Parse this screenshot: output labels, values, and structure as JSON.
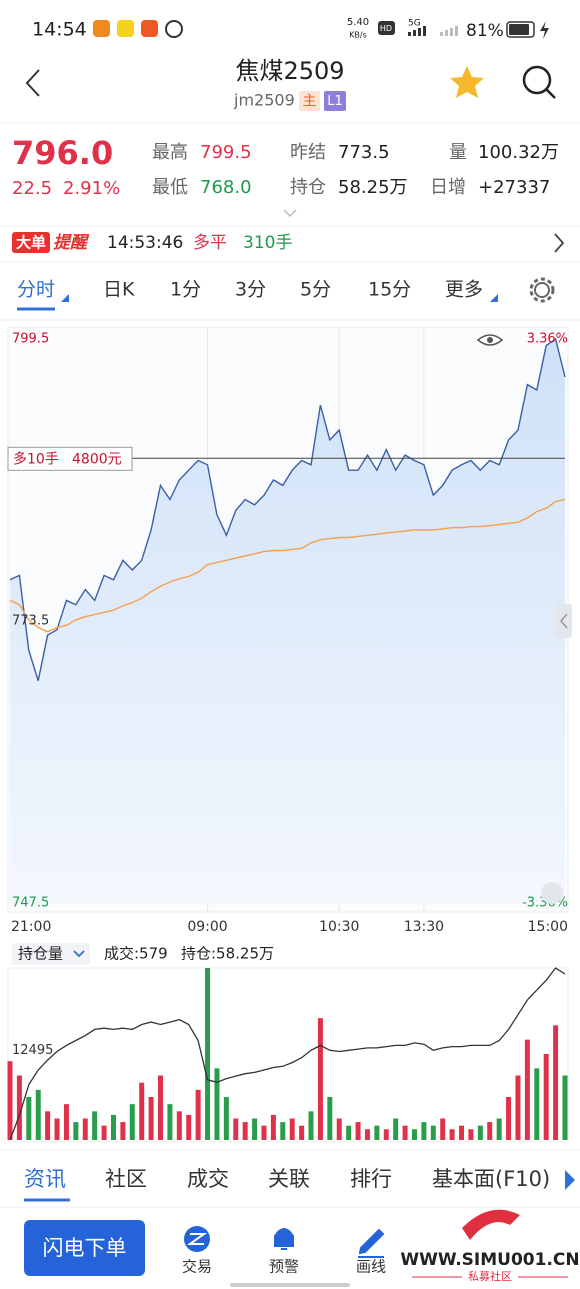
{
  "status_bar": {
    "time": "14:54",
    "net_speed": "5.40",
    "net_unit": "KB/s",
    "hd": "HD",
    "signal": "5G",
    "battery": "81%"
  },
  "header": {
    "title": "焦煤2509",
    "code": "jm2509",
    "badge_main": "主",
    "badge_level": "L1"
  },
  "quote": {
    "last": "796.0",
    "change": "22.5",
    "change_pct": "2.91%",
    "high_label": "最高",
    "high": "799.5",
    "low_label": "最低",
    "low": "768.0",
    "prev_settle_label": "昨结",
    "prev_settle": "773.5",
    "open_interest_label": "持仓",
    "open_interest": "58.25万",
    "volume_label": "量",
    "volume": "100.32万",
    "daily_change_label": "日增",
    "daily_change": "+27337"
  },
  "alert": {
    "badge": "大单",
    "badge_suffix": "提醒",
    "time": "14:53:46",
    "action": "多平",
    "size": "310手"
  },
  "period_tabs": [
    "分时",
    "日K",
    "1分",
    "3分",
    "5分",
    "15分",
    "更多"
  ],
  "chart_data": [
    {
      "type": "line",
      "categories": [
        "21:00",
        null,
        null,
        null,
        null,
        null,
        null,
        null,
        null,
        null,
        null,
        null,
        null,
        null,
        null,
        null,
        null,
        null,
        null,
        null,
        null,
        "09:00",
        null,
        null,
        null,
        null,
        null,
        null,
        null,
        null,
        null,
        null,
        null,
        null,
        null,
        "10:30",
        null,
        null,
        null,
        null,
        null,
        null,
        null,
        null,
        "13:30",
        null,
        null,
        null,
        null,
        null,
        null,
        null,
        null,
        null,
        null,
        null,
        null,
        null,
        null,
        "15:00"
      ],
      "series": [
        {
          "color": "#3a5fa8",
          "fill": true,
          "values": [
            777.3,
            777.7,
            770.8,
            768.0,
            772.2,
            772.7,
            775.4,
            775.0,
            776.4,
            775.4,
            777.7,
            777.3,
            779.1,
            778.2,
            779.1,
            781.9,
            786.0,
            784.7,
            786.5,
            787.4,
            788.3,
            787.9,
            783.3,
            781.4,
            783.7,
            784.7,
            784.2,
            785.1,
            786.5,
            786.0,
            787.4,
            788.3,
            787.9,
            793.4,
            790.2,
            791.1,
            787.4,
            787.4,
            788.8,
            787.4,
            789.3,
            787.4,
            788.8,
            788.3,
            787.9,
            785.1,
            786.0,
            787.4,
            787.9,
            788.3,
            787.4,
            788.3,
            787.9,
            790.2,
            791.1,
            795.3,
            794.8,
            798.9,
            799.5,
            796.0
          ]
        },
        {
          "color": "#f5a04a",
          "fill": false,
          "values": [
            775.4,
            775.0,
            773.6,
            772.9,
            772.5,
            772.9,
            773.1,
            773.6,
            773.9,
            774.1,
            774.3,
            774.5,
            774.9,
            775.2,
            775.6,
            776.2,
            776.7,
            777.1,
            777.4,
            777.6,
            778.0,
            778.7,
            778.9,
            779.1,
            779.3,
            779.5,
            779.7,
            779.9,
            780.0,
            780.0,
            780.1,
            780.2,
            780.7,
            781.0,
            781.1,
            781.2,
            781.2,
            781.3,
            781.4,
            781.5,
            781.6,
            781.7,
            781.8,
            781.9,
            781.9,
            781.9,
            782.0,
            782.1,
            782.1,
            782.2,
            782.2,
            782.3,
            782.4,
            782.5,
            782.6,
            783.0,
            783.6,
            783.9,
            784.5,
            784.7
          ]
        }
      ],
      "ylim": [
        747.5,
        799.5
      ],
      "yticks": [
        799.5,
        773.5,
        747.5
      ],
      "y2lim": [
        -3.36,
        3.36
      ],
      "y2ticks": [
        {
          "value": 3.36,
          "label": "3.36%"
        },
        {
          "value": -3.36,
          "label": "-3.36%"
        }
      ],
      "position_line": {
        "label": "多10手",
        "profit": "4800元",
        "value": 788.5
      }
    },
    {
      "type": "bar",
      "series": [
        {
          "up_color": "#e0314b",
          "down_color": "#2a9d4a",
          "values": [
            11000,
            9000,
            6000,
            7000,
            4000,
            3000,
            5000,
            2500,
            3000,
            4000,
            2000,
            3500,
            2500,
            5000,
            8000,
            6000,
            9000,
            5000,
            4000,
            3500,
            7000,
            24000,
            10000,
            6000,
            3000,
            2500,
            3000,
            2000,
            3500,
            2500,
            3000,
            2000,
            4000,
            17000,
            6000,
            3000,
            2000,
            2500,
            1500,
            2000,
            1500,
            3000,
            2000,
            1500,
            2500,
            2000,
            3000,
            1500,
            2000,
            1500,
            2000,
            2500,
            3000,
            6000,
            9000,
            14000,
            10000,
            12000,
            16000,
            9000
          ]
        },
        {
          "type": "line",
          "axis": "y2",
          "color": "#333333",
          "values": [
            56.9,
            57.1,
            57.35,
            57.47,
            57.55,
            57.62,
            57.67,
            57.71,
            57.75,
            57.8,
            57.81,
            57.8,
            57.81,
            57.8,
            57.84,
            57.86,
            57.84,
            57.86,
            57.88,
            57.84,
            57.71,
            57.39,
            57.37,
            57.4,
            57.42,
            57.44,
            57.45,
            57.47,
            57.49,
            57.5,
            57.53,
            57.57,
            57.63,
            57.67,
            57.63,
            57.62,
            57.63,
            57.64,
            57.65,
            57.65,
            57.66,
            57.67,
            57.67,
            57.69,
            57.68,
            57.63,
            57.65,
            57.66,
            57.66,
            57.67,
            57.67,
            57.67,
            57.71,
            57.8,
            57.92,
            58.04,
            58.12,
            58.2,
            58.3,
            58.25
          ]
        }
      ],
      "ylim": [
        0,
        24000
      ],
      "yticks": [
        12495
      ],
      "y2lim": [
        56.9,
        58.3
      ]
    }
  ],
  "volume_header": {
    "selector": "持仓量",
    "turnover": "成交:579",
    "open_interest": "持仓:58.25万"
  },
  "info_tabs": [
    "资讯",
    "社区",
    "成交",
    "关联",
    "排行",
    "基本面(F10)"
  ],
  "bottom_bar": {
    "order_button": "闪电下单",
    "actions": [
      "交易",
      "预警",
      "画线"
    ]
  },
  "watermark": {
    "url": "WWW.SIMU001.CN",
    "name": "私募社区"
  }
}
